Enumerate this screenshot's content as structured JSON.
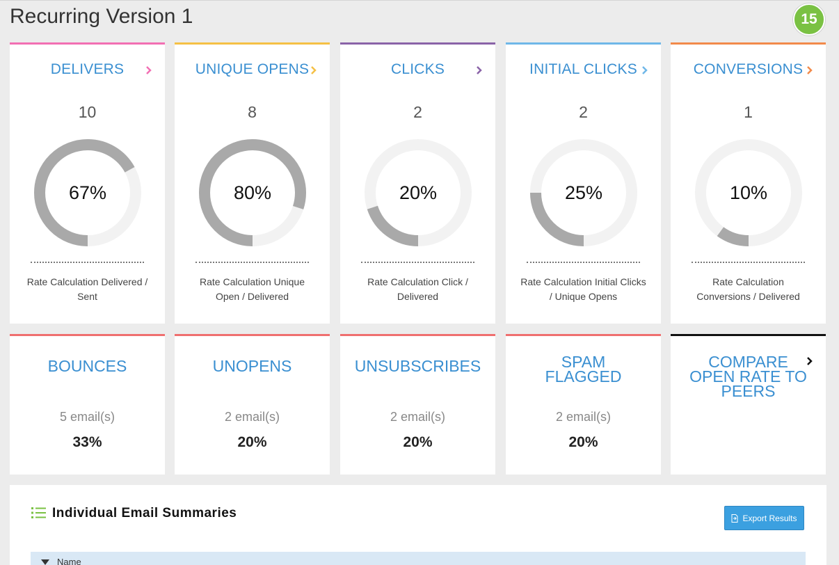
{
  "header": {
    "title": "Recurring Version 1",
    "badge": "15"
  },
  "colors": {
    "delivers": "#f26fb3",
    "unique_opens": "#f5c045",
    "clicks": "#8a63a8",
    "initial_clicks": "#6fb7e8",
    "conversions": "#f28a4a",
    "stat_accent": "#ef6f6f",
    "compare_accent": "#111111",
    "donut_fill": "#a9a9a9",
    "donut_track": "#f2f2f2"
  },
  "metrics": [
    {
      "title": "Delivers",
      "count": "10",
      "percent": "67%",
      "value": 67,
      "calc": "Rate Calculation Delivered / Sent"
    },
    {
      "title": "Unique Opens",
      "count": "8",
      "percent": "80%",
      "value": 80,
      "calc": "Rate Calculation Unique Open / Delivered"
    },
    {
      "title": "Clicks",
      "count": "2",
      "percent": "20%",
      "value": 20,
      "calc": "Rate Calculation Click / Delivered"
    },
    {
      "title": "Initial Clicks",
      "count": "2",
      "percent": "25%",
      "value": 25,
      "calc": "Rate Calculation Initial Clicks / Unique Opens"
    },
    {
      "title": "Conversions",
      "count": "1",
      "percent": "10%",
      "value": 10,
      "calc": "Rate Calculation Conversions / Delivered"
    }
  ],
  "stats": [
    {
      "title": "Bounces",
      "emails": "5 email(s)",
      "percent": "33%"
    },
    {
      "title": "Unopens",
      "emails": "2 email(s)",
      "percent": "20%"
    },
    {
      "title": "Unsubscribes",
      "emails": "2 email(s)",
      "percent": "20%"
    },
    {
      "title_line1": "Spam",
      "title_line2": "Flagged",
      "emails": "2 email(s)",
      "percent": "20%"
    }
  ],
  "compare": {
    "line1": "Compare",
    "line2": "Open Rate to",
    "line3": "Peers"
  },
  "summaries": {
    "title": "Individual Email Summaries",
    "export_label": "Export Results",
    "column_name": "Name"
  },
  "icons": {
    "chevron": "chevron-right-icon",
    "list": "list-icon",
    "export": "file-export-icon",
    "sort": "sort-icon"
  }
}
